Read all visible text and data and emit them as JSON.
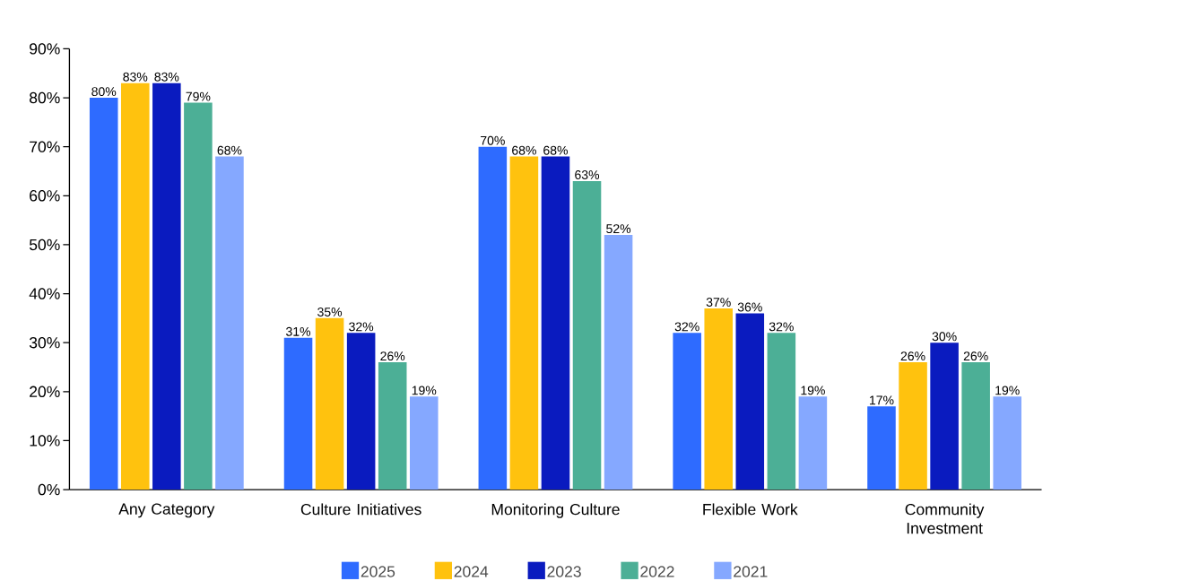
{
  "chart_data": {
    "type": "bar",
    "categories": [
      "Any Category",
      "Culture Initiatives",
      "Monitoring Culture",
      "Flexible Work",
      "Community Investment"
    ],
    "series": [
      {
        "name": "2025",
        "color": "#2e6bff",
        "values": [
          80,
          31,
          70,
          32,
          17
        ],
        "value_labels": [
          "80%",
          "31%",
          "70%",
          "32%",
          "17%"
        ]
      },
      {
        "name": "2024",
        "color": "#ffc20e",
        "values": [
          83,
          35,
          68,
          37,
          26
        ],
        "value_labels": [
          "83%",
          "35%",
          "68%",
          "37%",
          "26%"
        ]
      },
      {
        "name": "2023",
        "color": "#0a1bbf",
        "values": [
          83,
          32,
          68,
          36,
          30
        ],
        "value_labels": [
          "83%",
          "32%",
          "68%",
          "36%",
          "30%"
        ]
      },
      {
        "name": "2022",
        "color": "#4caf96",
        "values": [
          79,
          26,
          63,
          32,
          26
        ],
        "value_labels": [
          "79%",
          "26%",
          "63%",
          "32%",
          "26%"
        ]
      },
      {
        "name": "2021",
        "color": "#85a8ff",
        "values": [
          68,
          19,
          52,
          19,
          19
        ],
        "value_labels": [
          "68%",
          "19%",
          "52%",
          "19%",
          "19%"
        ]
      }
    ],
    "ylim": [
      0,
      90
    ],
    "yticks": [
      {
        "value": 0,
        "label": "0%"
      },
      {
        "value": 10,
        "label": "10%"
      },
      {
        "value": 20,
        "label": "20%"
      },
      {
        "value": 30,
        "label": "30%"
      },
      {
        "value": 40,
        "label": "40%"
      },
      {
        "value": 50,
        "label": "50%"
      },
      {
        "value": 60,
        "label": "60%"
      },
      {
        "value": 70,
        "label": "70%"
      },
      {
        "value": 80,
        "label": "80%"
      },
      {
        "value": 90,
        "label": "90%"
      }
    ],
    "legend": "bottom",
    "grid": false
  }
}
